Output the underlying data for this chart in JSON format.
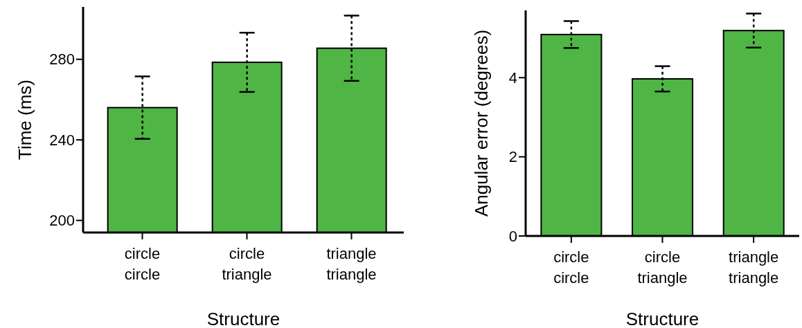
{
  "chart_data": [
    {
      "type": "bar",
      "xlabel": "Structure",
      "ylabel": "Time (ms)",
      "categories": [
        "circle\ncircle",
        "circle\ntriangle",
        "triangle\ntriangle"
      ],
      "values": [
        256.0,
        278.5,
        285.5
      ],
      "errors": [
        15.5,
        14.7,
        16.2
      ],
      "color": "#4fb645",
      "ylim": [
        194,
        306
      ],
      "yticks": [
        200,
        240,
        280
      ],
      "grid": false,
      "legend": false
    },
    {
      "type": "bar",
      "xlabel": "Structure",
      "ylabel": "Angular error (degrees)",
      "categories": [
        "circle\ncircle",
        "circle\ntriangle",
        "triangle\ntriangle"
      ],
      "values": [
        5.09,
        3.97,
        5.19
      ],
      "errors": [
        0.34,
        0.32,
        0.43
      ],
      "color": "#4fb645",
      "ylim": [
        0,
        5.7
      ],
      "yticks": [
        0,
        2,
        4
      ],
      "grid": false,
      "legend": false
    }
  ]
}
